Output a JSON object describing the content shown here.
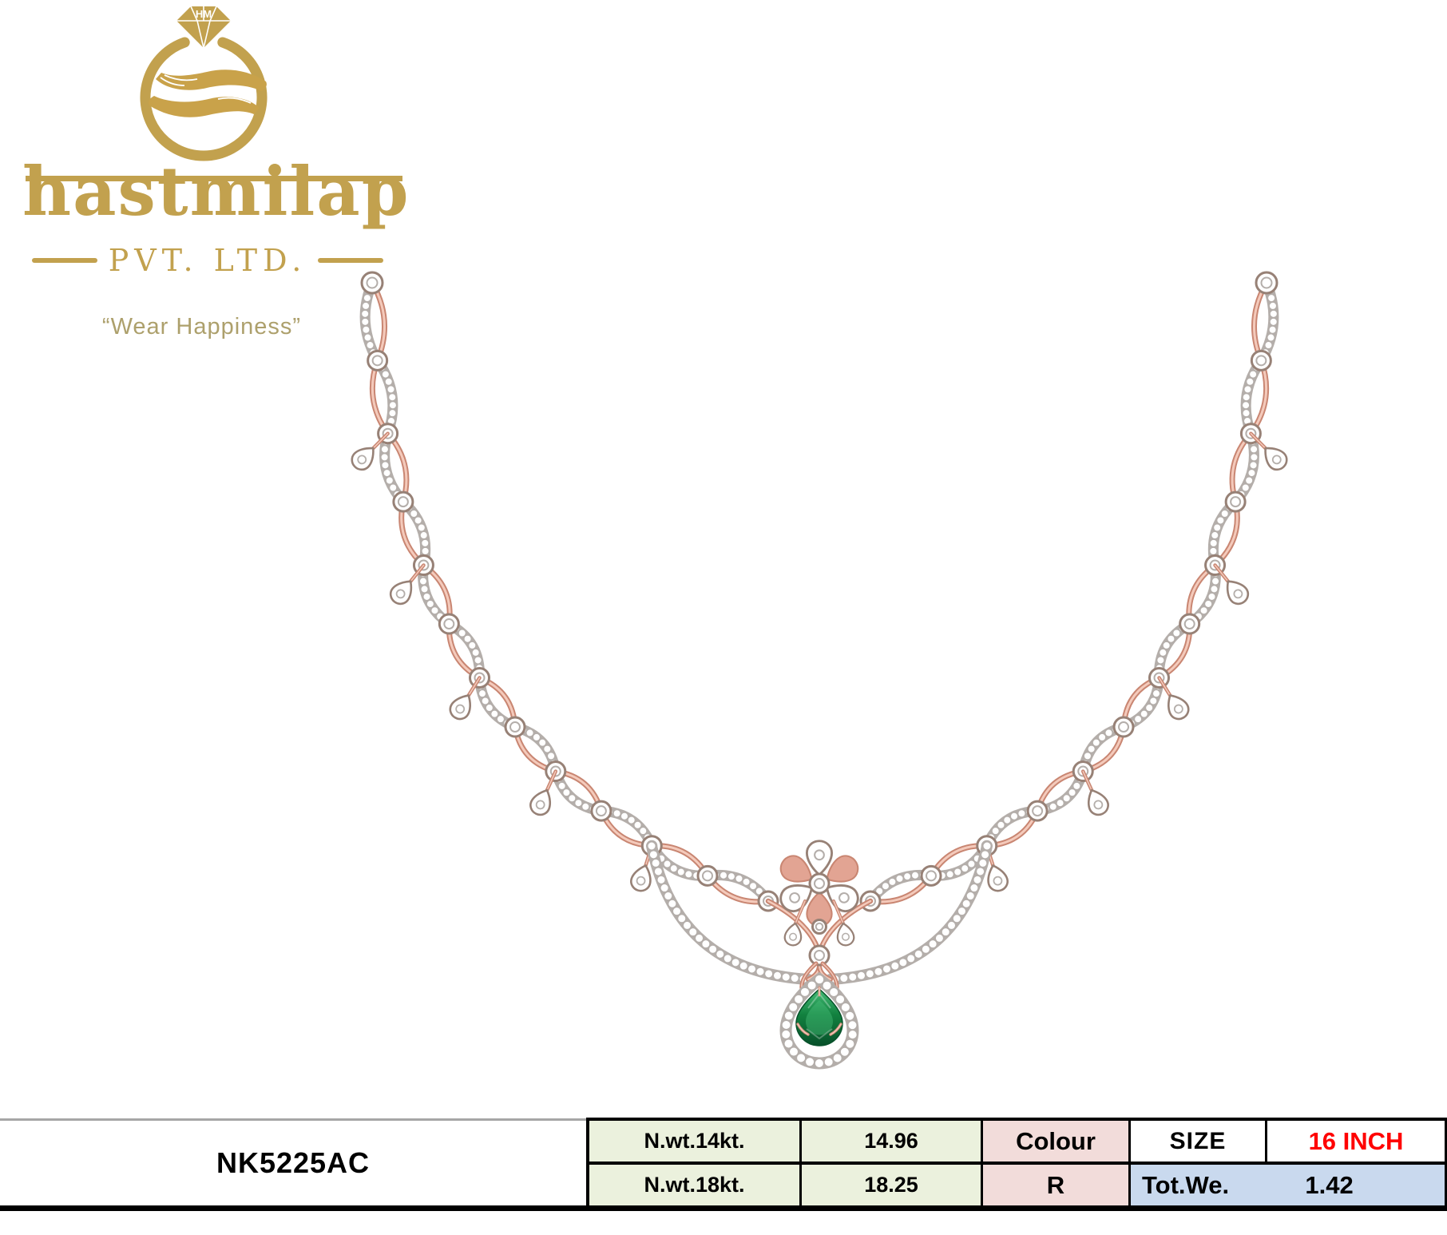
{
  "brand": {
    "wordmark": "hastmilap",
    "suffix": "PVT. LTD.",
    "monogram": "HM",
    "tagline": "“Wear Happiness”"
  },
  "product": {
    "sku": "NK5225AC",
    "description": "rose-gold diamond scallop necklace with pear emerald drop pendant"
  },
  "spec_table": {
    "rows": [
      {
        "label": "N.wt.14kt.",
        "value": "14.96"
      },
      {
        "label": "N.wt.18kt.",
        "value": "18.25"
      }
    ],
    "colour_label": "Colour",
    "colour_value": "R",
    "size_label": "SIZE",
    "size_value": "16 INCH",
    "total_weight_label": "Tot.We.",
    "total_weight_value": "1.42"
  },
  "colors": {
    "brand_gold": "#c2a14e",
    "tagline_gold": "#ada06c",
    "rose_gold": "#e2a493",
    "rose_gold_light": "#f4cabb",
    "rose_gold_deep": "#c98672",
    "pave_edge": "#b4aeaa",
    "bezel_ring": "#978176",
    "emerald_light": "#46bd77",
    "emerald": "#12813f",
    "emerald_dark": "#07512a",
    "table_green": "#ebf1dd",
    "table_pink": "#f2dcda",
    "table_blue": "#c9d9ee",
    "size_red": "#ff0000",
    "line_gray": "#a6a6a6",
    "line_black": "#000000"
  }
}
